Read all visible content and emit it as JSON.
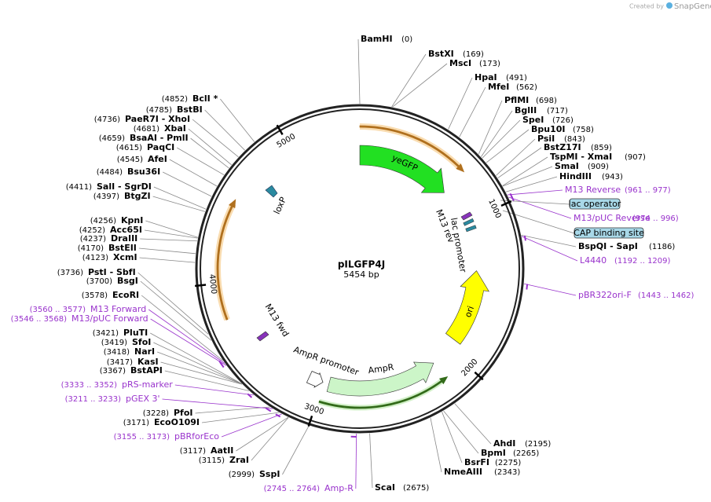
{
  "header": {
    "created_by": "Created by",
    "brand": "SnapGene"
  },
  "map": {
    "name": "pILGFP4J",
    "length": "5454 bp",
    "ticks": [
      1000,
      2000,
      3000,
      4000,
      5000
    ],
    "features": [
      "yeGFP",
      "loxP",
      "M13 rev",
      "lac promoter",
      "ori",
      "AmpR",
      "AmpR promoter",
      "M13 fwd"
    ],
    "sites": [
      "lac operator",
      "CAP binding site"
    ],
    "enzymes": [
      {
        "name": "BamHI",
        "pos": "(0)"
      },
      {
        "name": "BstXI",
        "pos": "(169)"
      },
      {
        "name": "MscI",
        "pos": "(173)"
      },
      {
        "name": "HpaI",
        "pos": "(491)"
      },
      {
        "name": "MfeI",
        "pos": "(562)"
      },
      {
        "name": "PflMI",
        "pos": "(698)"
      },
      {
        "name": "BglII",
        "pos": "(717)"
      },
      {
        "name": "SpeI",
        "pos": "(726)"
      },
      {
        "name": "Bpu10I",
        "pos": "(758)"
      },
      {
        "name": "PsiI",
        "pos": "(843)"
      },
      {
        "name": "BstZ17I",
        "pos": "(859)"
      },
      {
        "name": "TspMI  - XmaI",
        "pos": "(907)"
      },
      {
        "name": "SmaI",
        "pos": "(909)"
      },
      {
        "name": "HindIII",
        "pos": "(943)"
      },
      {
        "name": "BspQI  - SapI",
        "pos": "(1186)"
      },
      {
        "name": "AhdI",
        "pos": "(2195)"
      },
      {
        "name": "BpmI",
        "pos": "(2265)"
      },
      {
        "name": "BsrFI",
        "pos": "(2275)"
      },
      {
        "name": "NmeAIII",
        "pos": "(2343)"
      },
      {
        "name": "ScaI",
        "pos": "(2675)"
      },
      {
        "name": "BclI *",
        "pos": "(4852)"
      },
      {
        "name": "BstBI",
        "pos": "(4785)"
      },
      {
        "name": "PaeR7I  - XhoI",
        "pos": "(4736)"
      },
      {
        "name": "XbaI",
        "pos": "(4681)"
      },
      {
        "name": "BsaAI  - PmlI",
        "pos": "(4659)"
      },
      {
        "name": "PaqCI",
        "pos": "(4615)"
      },
      {
        "name": "AfeI",
        "pos": "(4545)"
      },
      {
        "name": "Bsu36I",
        "pos": "(4484)"
      },
      {
        "name": "SalI  - SgrDI",
        "pos": "(4411)"
      },
      {
        "name": "BtgZI",
        "pos": "(4397)"
      },
      {
        "name": "KpnI",
        "pos": "(4256)"
      },
      {
        "name": "Acc65I",
        "pos": "(4252)"
      },
      {
        "name": "DraIII",
        "pos": "(4237)"
      },
      {
        "name": "BstEII",
        "pos": "(4170)"
      },
      {
        "name": "XcmI",
        "pos": "(4123)"
      },
      {
        "name": "PstI  - SbfI",
        "pos": "(3736)"
      },
      {
        "name": "BsgI",
        "pos": "(3700)"
      },
      {
        "name": "EcoRI",
        "pos": "(3578)"
      },
      {
        "name": "PluTI",
        "pos": "(3421)"
      },
      {
        "name": "SfoI",
        "pos": "(3419)"
      },
      {
        "name": "NarI",
        "pos": "(3418)"
      },
      {
        "name": "KasI",
        "pos": "(3417)"
      },
      {
        "name": "BstAPI",
        "pos": "(3367)"
      },
      {
        "name": "PfoI",
        "pos": "(3228)"
      },
      {
        "name": "EcoO109I",
        "pos": "(3171)"
      },
      {
        "name": "AatII",
        "pos": "(3117)"
      },
      {
        "name": "ZraI",
        "pos": "(3115)"
      },
      {
        "name": "SspI",
        "pos": "(2999)"
      }
    ],
    "primers": [
      {
        "name": "M13 Reverse",
        "range": "(961 .. 977)"
      },
      {
        "name": "M13/pUC Reverse",
        "range": "(974 .. 996)"
      },
      {
        "name": "L4440",
        "range": "(1192 .. 1209)"
      },
      {
        "name": "pBR322ori-F",
        "range": "(1443 .. 1462)"
      },
      {
        "name": "Amp-R",
        "range": "(2745 .. 2764)"
      },
      {
        "name": "M13 Forward",
        "range": "(3560 .. 3577)"
      },
      {
        "name": "M13/pUC Forward",
        "range": "(3546 .. 3568)"
      },
      {
        "name": "pRS-marker",
        "range": "(3333 .. 3352)"
      },
      {
        "name": "pGEX 3'",
        "range": "(3211 .. 3233)"
      },
      {
        "name": "pBRforEco",
        "range": "(3155 .. 3173)"
      }
    ]
  }
}
